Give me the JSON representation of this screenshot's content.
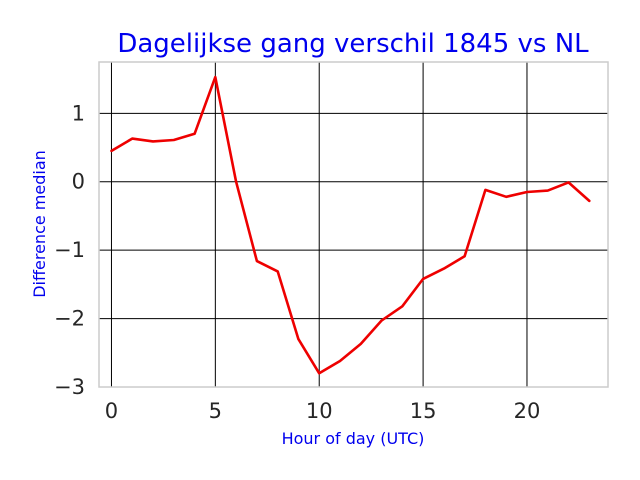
{
  "chart_data": {
    "type": "line",
    "title": "Dagelijkse gang verschil 1845 vs NL",
    "xlabel": "Hour of day (UTC)",
    "ylabel": "Difference median",
    "xlim": [
      -0.6,
      23.9
    ],
    "ylim": [
      -3,
      1.75
    ],
    "x_ticks": [
      0,
      5,
      10,
      15,
      20
    ],
    "x_tick_labels": [
      "0",
      "5",
      "10",
      "15",
      "20"
    ],
    "y_ticks": [
      1,
      0,
      -1,
      -2,
      -3
    ],
    "y_tick_labels": [
      "1",
      "0",
      "−1",
      "−2",
      "−3"
    ],
    "grid": true,
    "legend": "none",
    "series": [
      {
        "color": "#ee0000",
        "x": [
          0,
          1,
          2,
          3,
          4,
          5,
          6,
          7,
          8,
          9,
          10,
          11,
          12,
          13,
          14,
          15,
          16,
          17,
          18,
          19,
          20,
          21,
          22,
          23
        ],
        "values": [
          0.45,
          0.63,
          0.59,
          0.61,
          0.7,
          1.53,
          0.0,
          -1.16,
          -1.31,
          -2.3,
          -2.8,
          -2.62,
          -2.37,
          -2.03,
          -1.82,
          -1.42,
          -1.27,
          -1.09,
          -0.12,
          -0.22,
          -0.15,
          -0.13,
          -0.01,
          -0.28
        ]
      }
    ]
  }
}
